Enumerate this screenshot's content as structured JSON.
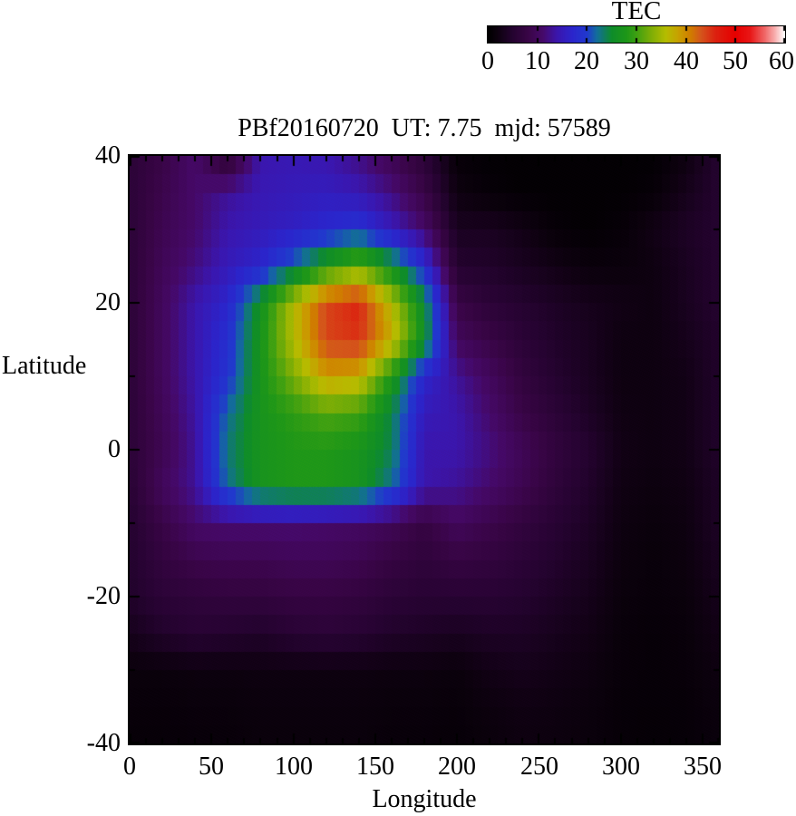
{
  "colorbar": {
    "title": "TEC",
    "tick_labels": [
      "0",
      "10",
      "20",
      "30",
      "40",
      "50",
      "60"
    ]
  },
  "plot": {
    "title": "PBf20160720  UT: 7.75  mjd: 57589",
    "xlabel": "Longitude",
    "ylabel": "Latitude",
    "x_tick_labels": [
      "0",
      "50",
      "100",
      "150",
      "200",
      "250",
      "300",
      "350"
    ],
    "y_tick_labels": [
      "40",
      "20",
      "0",
      "-20",
      "-40"
    ]
  },
  "chart_data": {
    "type": "heatmap",
    "title": "PBf20160720  UT: 7.75  mjd: 57589",
    "xlabel": "Longitude",
    "ylabel": "Latitude",
    "colorbar_label": "TEC",
    "xlim": [
      0,
      360
    ],
    "ylim": [
      -40,
      40
    ],
    "zlim": [
      0,
      60
    ],
    "x_ticks": [
      0,
      50,
      100,
      150,
      200,
      250,
      300,
      350
    ],
    "x_minor_tick_step": 10,
    "y_ticks": [
      -40,
      -20,
      0,
      20,
      40
    ],
    "y_minor_tick_step": 10,
    "colorbar_ticks": [
      0,
      10,
      20,
      30,
      40,
      50,
      60
    ],
    "grid": false,
    "cell_size_deg": {
      "lon": 5,
      "lat": 2.5
    },
    "lons": [
      0,
      20,
      40,
      60,
      80,
      100,
      120,
      140,
      160,
      180,
      200,
      220,
      240,
      260,
      280,
      300,
      320,
      340,
      360
    ],
    "lats": [
      40,
      35,
      30,
      25,
      20,
      15,
      10,
      5,
      0,
      -5,
      -10,
      -15,
      -20,
      -25,
      -30,
      -35,
      -40
    ],
    "values": [
      [
        6,
        8,
        11,
        5,
        14,
        14.5,
        14,
        12,
        9,
        6,
        1,
        0.5,
        0.5,
        0.5,
        0.5,
        0.5,
        0.5,
        2,
        5
      ],
      [
        6,
        8.5,
        11,
        13,
        14.5,
        15,
        15.5,
        14.5,
        12,
        8,
        2,
        1,
        0.5,
        0.5,
        0.5,
        0.5,
        1,
        3,
        5
      ],
      [
        6,
        9,
        11,
        14,
        15,
        16,
        17.5,
        19,
        15,
        11,
        3.5,
        3.5,
        2.5,
        1,
        0.5,
        1,
        2.5,
        4,
        5
      ],
      [
        6,
        9.5,
        12,
        15,
        17,
        22,
        28,
        32,
        26,
        18,
        5,
        4.5,
        3.5,
        2.5,
        1.5,
        1.5,
        2,
        3.5,
        5
      ],
      [
        6,
        10,
        14,
        17,
        26,
        36,
        44,
        46,
        36,
        25,
        8,
        6,
        5,
        4,
        3,
        2.5,
        2,
        3.5,
        5
      ],
      [
        6,
        10,
        14,
        18.5,
        27,
        36,
        44,
        45,
        38,
        26,
        10,
        8,
        6,
        4.5,
        3.5,
        2,
        2,
        3,
        4.5
      ],
      [
        6,
        10,
        14,
        19,
        27,
        33,
        39,
        38,
        28,
        17,
        13,
        10,
        7,
        5,
        3.5,
        2,
        2,
        2.5,
        4.5
      ],
      [
        6,
        9.5,
        13.5,
        22,
        27,
        29,
        31,
        30,
        24,
        15,
        14,
        11,
        8,
        6,
        4,
        2.2,
        2,
        2.5,
        4.5
      ],
      [
        6,
        9,
        13,
        23,
        27,
        28,
        28,
        27,
        24,
        14,
        14,
        12,
        9.5,
        7,
        5,
        2.5,
        2,
        2.5,
        4.5
      ],
      [
        5.5,
        10,
        13,
        22,
        27,
        28,
        28,
        27,
        22,
        14,
        13,
        11,
        9,
        6.5,
        4.5,
        2.2,
        1.8,
        2.2,
        4
      ],
      [
        5,
        8,
        11,
        11.5,
        11.5,
        11.5,
        11,
        10.5,
        9.5,
        7.5,
        10,
        8.5,
        7,
        5.5,
        4,
        2,
        1.5,
        2,
        4
      ],
      [
        4.8,
        7,
        8.5,
        9,
        9,
        9.5,
        9.5,
        9,
        7.5,
        6.5,
        7.5,
        7,
        6,
        4.8,
        3.5,
        1.8,
        1.3,
        1.8,
        3.5
      ],
      [
        4.5,
        6,
        6.5,
        7,
        7,
        7.5,
        7.5,
        7,
        6,
        5.5,
        5.5,
        5.5,
        5,
        4,
        3,
        1.5,
        1.2,
        1.5,
        3
      ],
      [
        3,
        4.5,
        5.5,
        5,
        4.5,
        5.5,
        6,
        5.5,
        4.5,
        4,
        3.5,
        4,
        4,
        3.2,
        2.5,
        1.3,
        1,
        1.3,
        2.5
      ],
      [
        1.5,
        1.5,
        1.8,
        1.8,
        2,
        2,
        2,
        2,
        1.8,
        1.8,
        1.5,
        2.5,
        3,
        2.5,
        2,
        1.2,
        1,
        1.2,
        2
      ],
      [
        1.2,
        1.2,
        1.4,
        1.4,
        1.6,
        1.6,
        1.6,
        1.6,
        1.4,
        1.4,
        1.2,
        1.8,
        2.2,
        2,
        1.6,
        1,
        0.9,
        1,
        1.6
      ],
      [
        1,
        1,
        1.2,
        1.2,
        1.5,
        1.5,
        1.5,
        1.5,
        1.2,
        1.2,
        1,
        1.5,
        2,
        1.8,
        1.5,
        1,
        0.8,
        1,
        1.5
      ]
    ],
    "palette_stops": [
      [
        0,
        "#000000"
      ],
      [
        2,
        "#0e0110"
      ],
      [
        5,
        "#250330"
      ],
      [
        8,
        "#390546"
      ],
      [
        11,
        "#460968"
      ],
      [
        14,
        "#3b16ae"
      ],
      [
        17,
        "#2b25cc"
      ],
      [
        20,
        "#2139ce"
      ],
      [
        22,
        "#136e9b"
      ],
      [
        25,
        "#0e8c2a"
      ],
      [
        28,
        "#1e9718"
      ],
      [
        30,
        "#3da012"
      ],
      [
        33,
        "#7eae06"
      ],
      [
        36,
        "#b6bd00"
      ],
      [
        39,
        "#cb9a00"
      ],
      [
        41,
        "#d07c00"
      ],
      [
        43,
        "#d4561c"
      ],
      [
        46,
        "#dc2110"
      ],
      [
        50,
        "#e60000"
      ],
      [
        53,
        "#e81616"
      ],
      [
        56,
        "#f06868"
      ],
      [
        58,
        "#f8aeae"
      ],
      [
        60,
        "#ffffff"
      ]
    ]
  }
}
